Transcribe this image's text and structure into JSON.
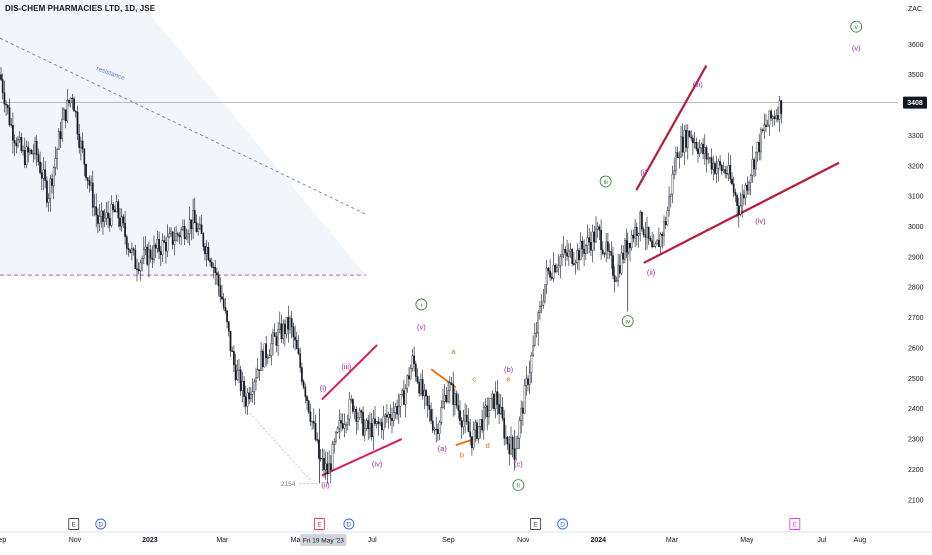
{
  "header": {
    "title": "DIS-CHEM PHARMACIES LTD, 1D, JSE",
    "currency": "ZAC"
  },
  "colors": {
    "candle": "#131722",
    "wave_purple": "#9c27b0",
    "wave_green": "#2e7d32",
    "wave_orange": "#ef6c00",
    "trendline_pink": "#d81b60",
    "trendline_red": "#b71c3c",
    "resistance_blue": "#5b7fd6",
    "support_dashed": "#e040fb",
    "shade": "#e9eef7",
    "axis_text": "#131722"
  },
  "chart_data": {
    "type": "candlestick",
    "x_axis": {
      "ticks": [
        "Sep",
        "Nov",
        "2023",
        "Mar",
        "May",
        "Jul",
        "Sep",
        "Nov",
        "2024",
        "Mar",
        "May",
        "Jul",
        "Aug"
      ],
      "crosshair_label": "Fri 19 May '23"
    },
    "y_axis": {
      "ticks": [
        2100,
        2200,
        2300,
        2400,
        2500,
        2600,
        2700,
        2800,
        2900,
        3000,
        3100,
        3200,
        3300,
        3400,
        3500,
        3600
      ],
      "range": [
        2040,
        3680
      ]
    },
    "last_price": {
      "value": 3408,
      "label": "3408"
    },
    "low_marker": {
      "value": 2154,
      "label": "2154",
      "date": "2023-05-19"
    },
    "series": [
      {
        "name": "close",
        "points": [
          [
            "2022-09-01",
            3500
          ],
          [
            "2022-09-10",
            3330
          ],
          [
            "2022-09-20",
            3230
          ],
          [
            "2022-09-30",
            3250
          ],
          [
            "2022-10-10",
            3100
          ],
          [
            "2022-10-22",
            3350
          ],
          [
            "2022-10-30",
            3440
          ],
          [
            "2022-11-05",
            3280
          ],
          [
            "2022-11-20",
            3010
          ],
          [
            "2022-12-05",
            3050
          ],
          [
            "2022-12-20",
            2880
          ],
          [
            "2023-01-05",
            2920
          ],
          [
            "2023-01-20",
            2960
          ],
          [
            "2023-02-05",
            3020
          ],
          [
            "2023-02-20",
            2900
          ],
          [
            "2023-03-01",
            2760
          ],
          [
            "2023-03-10",
            2550
          ],
          [
            "2023-03-20",
            2430
          ],
          [
            "2023-04-01",
            2560
          ],
          [
            "2023-04-15",
            2640
          ],
          [
            "2023-04-25",
            2680
          ],
          [
            "2023-05-05",
            2510
          ],
          [
            "2023-05-12",
            2380
          ],
          [
            "2023-05-19",
            2230
          ],
          [
            "2023-05-26",
            2190
          ],
          [
            "2023-06-05",
            2350
          ],
          [
            "2023-06-15",
            2420
          ],
          [
            "2023-06-25",
            2330
          ],
          [
            "2023-07-05",
            2340
          ],
          [
            "2023-07-15",
            2380
          ],
          [
            "2023-07-25",
            2420
          ],
          [
            "2023-08-03",
            2560
          ],
          [
            "2023-08-12",
            2430
          ],
          [
            "2023-08-22",
            2330
          ],
          [
            "2023-09-01",
            2480
          ],
          [
            "2023-09-10",
            2390
          ],
          [
            "2023-09-20",
            2300
          ],
          [
            "2023-10-01",
            2380
          ],
          [
            "2023-10-10",
            2440
          ],
          [
            "2023-10-18",
            2300
          ],
          [
            "2023-10-25",
            2260
          ],
          [
            "2023-11-01",
            2420
          ],
          [
            "2023-11-10",
            2620
          ],
          [
            "2023-11-20",
            2840
          ],
          [
            "2023-12-01",
            2900
          ],
          [
            "2023-12-15",
            2910
          ],
          [
            "2024-01-01",
            2980
          ],
          [
            "2024-01-15",
            2840
          ],
          [
            "2024-01-25",
            2950
          ],
          [
            "2024-02-05",
            3020
          ],
          [
            "2024-02-15",
            2900
          ],
          [
            "2024-02-25",
            3020
          ],
          [
            "2024-03-05",
            3250
          ],
          [
            "2024-03-15",
            3310
          ],
          [
            "2024-03-25",
            3250
          ],
          [
            "2024-04-05",
            3200
          ],
          [
            "2024-04-15",
            3180
          ],
          [
            "2024-04-25",
            3060
          ],
          [
            "2024-05-05",
            3200
          ],
          [
            "2024-05-15",
            3320
          ],
          [
            "2024-05-25",
            3380
          ],
          [
            "2024-05-30",
            3408
          ]
        ]
      }
    ],
    "lines": [
      {
        "name": "resistance",
        "label": "resistance",
        "style": "dashed",
        "from": [
          "2022-09-01",
          3620
        ],
        "to": [
          "2023-06-26",
          3040
        ]
      },
      {
        "name": "support",
        "style": "dashed",
        "from": [
          "2022-09-01",
          2840
        ],
        "to": [
          "2023-06-26",
          2840
        ]
      },
      {
        "name": "last-price-line",
        "style": "solid-thin",
        "from": [
          "2022-09-01",
          3408
        ],
        "to": [
          "2024-09-01",
          3408
        ]
      },
      {
        "name": "diagonal-1-upper",
        "style": "solid",
        "from": [
          "2023-05-21",
          2430
        ],
        "to": [
          "2023-07-05",
          2610
        ]
      },
      {
        "name": "diagonal-1-lower",
        "style": "solid",
        "from": [
          "2023-05-21",
          2180
        ],
        "to": [
          "2023-07-25",
          2300
        ]
      },
      {
        "name": "wave-b-upper",
        "style": "solid",
        "from": [
          "2023-08-18",
          2530
        ],
        "to": [
          "2023-09-07",
          2470
        ]
      },
      {
        "name": "wave-b-lower",
        "style": "solid",
        "from": [
          "2023-09-07",
          2280
        ],
        "to": [
          "2023-09-22",
          2300
        ]
      },
      {
        "name": "diagonal-2-upper",
        "style": "solid",
        "from": [
          "2024-02-01",
          3120
        ],
        "to": [
          "2024-03-29",
          3530
        ]
      },
      {
        "name": "diagonal-2-lower",
        "style": "solid",
        "from": [
          "2024-02-07",
          2880
        ],
        "to": [
          "2024-07-15",
          3210
        ]
      }
    ],
    "annotations": [
      {
        "text": "(i)",
        "x": "2023-05-22",
        "y": 2460,
        "color": "purple"
      },
      {
        "text": "(ii)",
        "x": "2023-05-24",
        "y": 2140,
        "color": "purple"
      },
      {
        "text": "(iii)",
        "x": "2023-06-10",
        "y": 2530,
        "color": "purple"
      },
      {
        "text": "(iv)",
        "x": "2023-07-05",
        "y": 2210,
        "color": "purple"
      },
      {
        "text": "(v)",
        "x": "2023-08-10",
        "y": 2660,
        "color": "purple"
      },
      {
        "text": "i",
        "x": "2023-08-10",
        "y": 2735,
        "color": "green",
        "circled": true
      },
      {
        "text": "(a)",
        "x": "2023-08-27",
        "y": 2260,
        "color": "purple"
      },
      {
        "text": "a",
        "x": "2023-09-05",
        "y": 2580,
        "color": "orange"
      },
      {
        "text": "b",
        "x": "2023-09-12",
        "y": 2240,
        "color": "orange"
      },
      {
        "text": "c",
        "x": "2023-09-22",
        "y": 2490,
        "color": "orange"
      },
      {
        "text": "d",
        "x": "2023-10-03",
        "y": 2270,
        "color": "orange"
      },
      {
        "text": "(b)",
        "x": "2023-10-20",
        "y": 2520,
        "color": "purple"
      },
      {
        "text": "e",
        "x": "2023-10-20",
        "y": 2490,
        "color": "orange"
      },
      {
        "text": "(c)",
        "x": "2023-10-28",
        "y": 2210,
        "color": "purple"
      },
      {
        "text": "ii",
        "x": "2023-10-28",
        "y": 2140,
        "color": "green",
        "circled": true
      },
      {
        "text": "iii",
        "x": "2024-01-07",
        "y": 3140,
        "color": "green",
        "circled": true
      },
      {
        "text": "iv",
        "x": "2024-01-25",
        "y": 2680,
        "color": "green",
        "circled": true
      },
      {
        "text": "(i)",
        "x": "2024-02-07",
        "y": 3170,
        "color": "purple"
      },
      {
        "text": "(ii)",
        "x": "2024-02-13",
        "y": 2840,
        "color": "purple"
      },
      {
        "text": "(iii)",
        "x": "2024-03-22",
        "y": 3460,
        "color": "purple"
      },
      {
        "text": "(iv)",
        "x": "2024-05-12",
        "y": 3010,
        "color": "purple"
      },
      {
        "text": "v",
        "x": "2024-07-29",
        "y": 3650,
        "color": "green",
        "circled": true
      },
      {
        "text": "(v)",
        "x": "2024-07-29",
        "y": 3580,
        "color": "purple"
      }
    ],
    "event_markers": [
      {
        "text": "E",
        "x": "2022-10-31",
        "style": "dark"
      },
      {
        "text": "D",
        "x": "2022-11-22",
        "style": "blue"
      },
      {
        "text": "E",
        "x": "2023-05-19",
        "style": "red"
      },
      {
        "text": "D",
        "x": "2023-06-12",
        "style": "blue"
      },
      {
        "text": "E",
        "x": "2023-11-11",
        "style": "dark"
      },
      {
        "text": "D",
        "x": "2023-12-03",
        "style": "blue"
      },
      {
        "text": "E",
        "x": "2024-06-09",
        "style": "pink"
      }
    ]
  }
}
